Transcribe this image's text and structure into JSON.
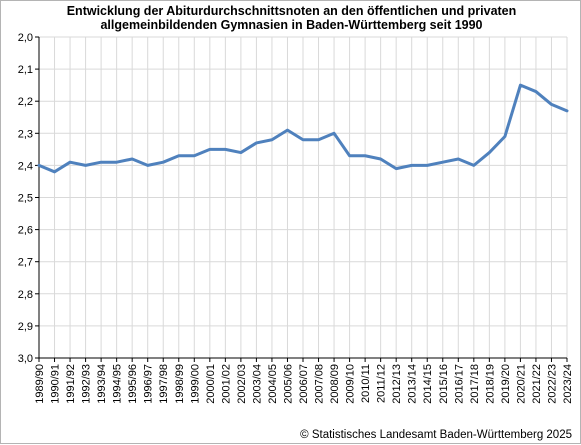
{
  "chart_data": {
    "type": "line",
    "title_line1": "Entwicklung der Abiturdurchschnittsnoten an den öffentlichen und privaten",
    "title_line2": "allgemeinbildenden Gymnasien in Baden-Württemberg seit 1990",
    "source": "© Statistisches Landesamt Baden-Württemberg 2025",
    "xlabel": "",
    "ylabel": "",
    "ylim": [
      2.0,
      3.0
    ],
    "y_inverted": true,
    "y_ticks": [
      "2,0",
      "2,1",
      "2,2",
      "2,3",
      "2,4",
      "2,5",
      "2,6",
      "2,7",
      "2,8",
      "2,9",
      "3,0"
    ],
    "grid": true,
    "line_color": "#4f81bd",
    "categories": [
      "1989/90",
      "1990/91",
      "1991/92",
      "1992/93",
      "1993/94",
      "1994/95",
      "1995/96",
      "1996/97",
      "1997/98",
      "1998/99",
      "1999/00",
      "2000/01",
      "2001/02",
      "2002/03",
      "2003/04",
      "2004/05",
      "2005/06",
      "2006/07",
      "2007/08",
      "2008/09",
      "2009/10",
      "2010/11",
      "2011/12",
      "2012/13",
      "2013/14",
      "2014/15",
      "2015/16",
      "2016/17",
      "2017/18",
      "2018/19",
      "2019/20",
      "2020/21",
      "2021/22",
      "2022/23",
      "2023/24"
    ],
    "series": [
      {
        "values": [
          2.4,
          2.42,
          2.39,
          2.4,
          2.39,
          2.39,
          2.38,
          2.4,
          2.39,
          2.37,
          2.37,
          2.35,
          2.35,
          2.36,
          2.33,
          2.32,
          2.29,
          2.32,
          2.32,
          2.3,
          2.37,
          2.37,
          2.38,
          2.41,
          2.4,
          2.4,
          2.39,
          2.38,
          2.4,
          2.36,
          2.31,
          2.15,
          2.17,
          2.21,
          2.23
        ]
      }
    ]
  }
}
